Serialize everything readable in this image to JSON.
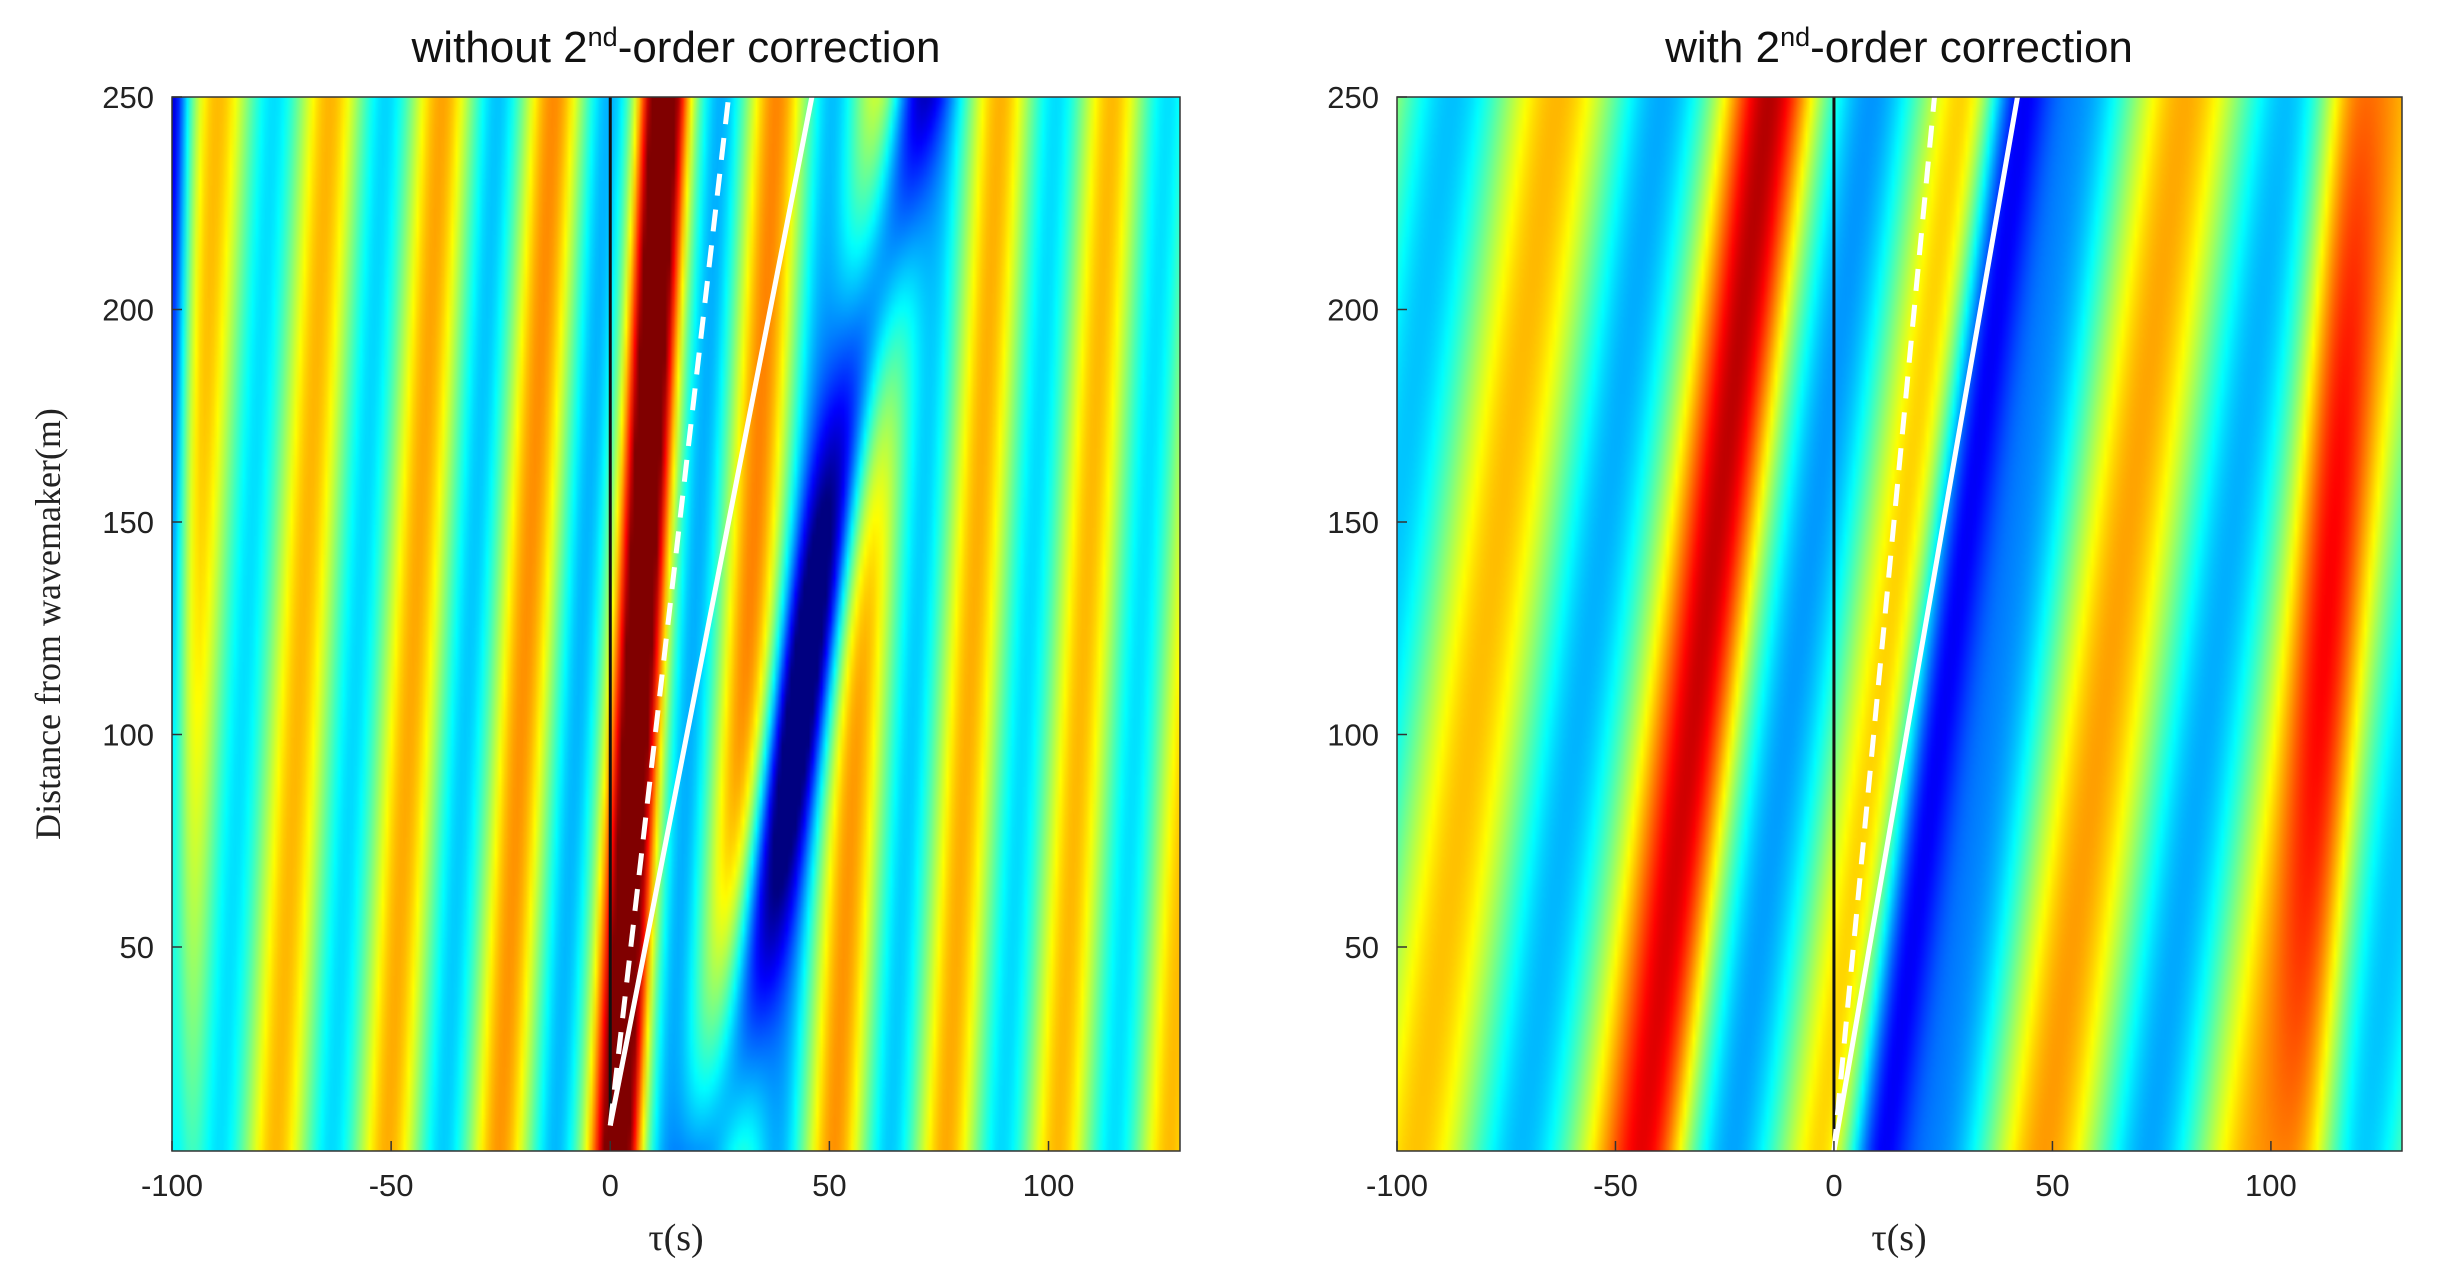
{
  "chart_data": [
    {
      "type": "heatmap",
      "title": {
        "pre": "without 2",
        "sup": "nd",
        "post": "-order correction"
      },
      "xlabel": "τ(s)",
      "ylabel": "Distance from wavemaker(m)",
      "xlim": [
        -100,
        130
      ],
      "ylim": [
        2,
        250
      ],
      "xticks": [
        -100,
        -50,
        0,
        50,
        100
      ],
      "yticks": [
        50,
        100,
        150,
        200,
        250
      ],
      "colormap": "jet",
      "grid": false,
      "field": {
        "period": 25.5,
        "slope": 0.05,
        "bg": 0.06,
        "env_center": 15,
        "env_width": 55
      },
      "stripes": [
        {
          "t0": -100,
          "slope": 0.0,
          "amp": -0.7,
          "w": 4
        },
        {
          "t0": 2,
          "slope": 0.04,
          "amp": 1.05,
          "w": 5
        },
        {
          "t0": 24,
          "slope": 0.18,
          "amp": -1.05,
          "w": 7
        }
      ],
      "lines": [
        {
          "name": "vertical",
          "style": "solid",
          "color": "#111111",
          "points": [
            [
              0,
              8
            ],
            [
              0,
              250
            ]
          ]
        },
        {
          "name": "dashed",
          "style": "dashed",
          "color": "#ffffff",
          "points": [
            [
              0,
              8
            ],
            [
              27,
              250
            ]
          ]
        },
        {
          "name": "solid",
          "style": "solid",
          "color": "#ffffff",
          "points": [
            [
              0,
              8
            ],
            [
              46,
              250
            ]
          ]
        }
      ]
    },
    {
      "type": "heatmap",
      "title": {
        "pre": "with 2",
        "sup": "nd",
        "post": "-order correction"
      },
      "xlabel": "τ(s)",
      "ylabel": "",
      "xlim": [
        -100,
        130
      ],
      "ylim": [
        2,
        250
      ],
      "xticks": [
        -100,
        -50,
        0,
        50,
        100
      ],
      "yticks": [
        50,
        100,
        150,
        200,
        250
      ],
      "colormap": "jet",
      "grid": false,
      "field": {
        "period": 48,
        "slope": 0.13,
        "bg": 0.0,
        "env_center": 20,
        "env_width": 90
      },
      "stripes": [
        {
          "t0": 9,
          "slope": 0.13,
          "amp": -1.05,
          "w": 8
        },
        {
          "t0": -42,
          "slope": 0.11,
          "amp": 0.55,
          "w": 9
        },
        {
          "t0": 108,
          "slope": 0.04,
          "amp": 0.45,
          "w": 8
        }
      ],
      "lines": [
        {
          "name": "vertical",
          "style": "solid",
          "color": "#111111",
          "points": [
            [
              0,
              2
            ],
            [
              0,
              250
            ]
          ]
        },
        {
          "name": "dashed",
          "style": "dashed",
          "color": "#ffffff",
          "points": [
            [
              0,
              2
            ],
            [
              23,
              250
            ]
          ]
        },
        {
          "name": "solid",
          "style": "solid",
          "color": "#ffffff",
          "points": [
            [
              0,
              2
            ],
            [
              42,
              250
            ]
          ]
        }
      ]
    }
  ]
}
